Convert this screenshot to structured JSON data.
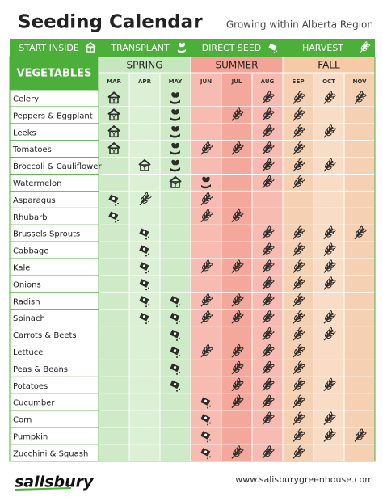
{
  "header": {
    "title": "Seeding Calendar",
    "subtitle": "Growing within Alberta Region"
  },
  "legend": [
    "START INSIDE",
    "TRANSPLANT",
    "DIRECT SEED",
    "HARVEST"
  ],
  "table": {
    "corner": "VEGETABLES",
    "seasons": [
      "SPRING",
      "SUMMER",
      "FALL"
    ],
    "months": [
      "MAR",
      "APR",
      "MAY",
      "JUN",
      "JUL",
      "AUG",
      "SEP",
      "OCT",
      "NOV"
    ],
    "rows": [
      {
        "name": "Celery",
        "cells": [
          "S",
          null,
          "T",
          null,
          null,
          "H",
          "H",
          "H",
          "H"
        ]
      },
      {
        "name": "Peppers & Eggplant",
        "cells": [
          "S",
          null,
          "T",
          null,
          "H",
          "H",
          "H",
          null,
          null
        ]
      },
      {
        "name": "Leeks",
        "cells": [
          "S",
          null,
          "T",
          null,
          null,
          "H",
          "H",
          "H",
          null
        ]
      },
      {
        "name": "Tomatoes",
        "cells": [
          "S",
          null,
          "T",
          "H",
          "H",
          "H",
          "H",
          null,
          null
        ]
      },
      {
        "name": "Broccoli & Cauliflower",
        "cells": [
          null,
          "S",
          "T",
          null,
          null,
          "H",
          "H",
          "H",
          null
        ]
      },
      {
        "name": "Watermelon",
        "cells": [
          null,
          null,
          "S",
          "T",
          null,
          "H",
          "H",
          null,
          null
        ]
      },
      {
        "name": "Asparagus",
        "cells": [
          "D",
          "H",
          null,
          "H",
          null,
          null,
          null,
          null,
          null
        ]
      },
      {
        "name": "Rhubarb",
        "cells": [
          "D",
          null,
          null,
          "H",
          "H",
          null,
          null,
          null,
          null
        ]
      },
      {
        "name": "Brussels Sprouts",
        "cells": [
          null,
          "D",
          null,
          null,
          null,
          "H",
          "H",
          "H",
          "H"
        ]
      },
      {
        "name": "Cabbage",
        "cells": [
          null,
          "D",
          null,
          null,
          null,
          "H",
          "H",
          "H",
          null
        ]
      },
      {
        "name": "Kale",
        "cells": [
          null,
          "D",
          null,
          "H",
          "H",
          "H",
          "H",
          "H",
          null
        ]
      },
      {
        "name": "Onions",
        "cells": [
          null,
          "D",
          null,
          null,
          null,
          "H",
          "H",
          "H",
          null
        ]
      },
      {
        "name": "Radish",
        "cells": [
          null,
          "D",
          "D",
          "H",
          "H",
          "H",
          "H",
          null,
          null
        ]
      },
      {
        "name": "Spinach",
        "cells": [
          null,
          "D",
          "D",
          "H",
          "H",
          "H",
          "H",
          "H",
          null
        ]
      },
      {
        "name": "Carrots & Beets",
        "cells": [
          null,
          null,
          "D",
          null,
          null,
          "H",
          "H",
          "H",
          null
        ]
      },
      {
        "name": "Lettuce",
        "cells": [
          null,
          null,
          "D",
          "H",
          "H",
          "H",
          "H",
          null,
          null
        ]
      },
      {
        "name": "Peas & Beans",
        "cells": [
          null,
          null,
          "D",
          null,
          "H",
          "H",
          "H",
          null,
          null
        ]
      },
      {
        "name": "Potatoes",
        "cells": [
          null,
          null,
          "D",
          null,
          "H",
          "H",
          "H",
          "H",
          null
        ]
      },
      {
        "name": "Cucumber",
        "cells": [
          null,
          null,
          null,
          "D",
          "H",
          "H",
          "H",
          null,
          null
        ]
      },
      {
        "name": "Corn",
        "cells": [
          null,
          null,
          null,
          "D",
          null,
          "H",
          "H",
          "H",
          null
        ]
      },
      {
        "name": "Pumpkin",
        "cells": [
          null,
          null,
          null,
          "D",
          null,
          null,
          "H",
          "H",
          "H"
        ]
      },
      {
        "name": "Zucchini & Squash",
        "cells": [
          null,
          null,
          null,
          "D",
          "H",
          "H",
          "H",
          null,
          null
        ]
      }
    ]
  },
  "footer": {
    "logo": "salisbury",
    "url": "www.salisburygreenhouse.com"
  }
}
